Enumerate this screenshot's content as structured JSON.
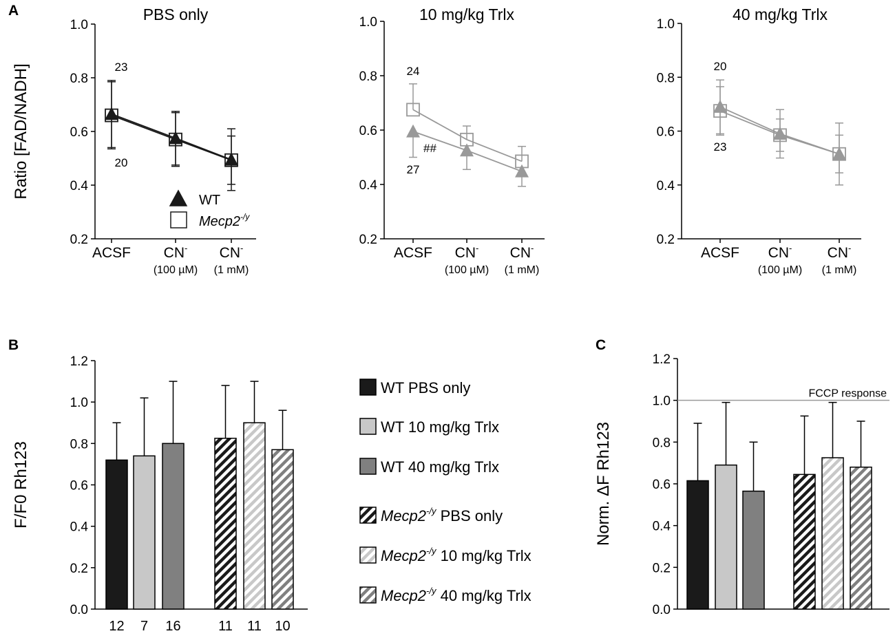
{
  "panel_labels": {
    "a": "A",
    "b": "B",
    "c": "C"
  },
  "legend_a": {
    "wt": "WT",
    "mecp2": "Mecp2",
    "mecp2_sup": "-/y"
  },
  "legend_b": {
    "entries": [
      {
        "label": "WT PBS only",
        "italic_prefix": "",
        "sup": "",
        "style": "solid",
        "color": "#1a1a1a"
      },
      {
        "label": "WT 10 mg/kg Trlx",
        "italic_prefix": "",
        "sup": "",
        "style": "solid",
        "color": "#c8c8c8"
      },
      {
        "label": "WT 40 mg/kg Trlx",
        "italic_prefix": "",
        "sup": "",
        "style": "solid",
        "color": "#808080"
      },
      {
        "label": " PBS only",
        "italic_prefix": "Mecp2",
        "sup": "-/y",
        "style": "hatch",
        "color": "#1a1a1a"
      },
      {
        "label": " 10 mg/kg Trlx",
        "italic_prefix": "Mecp2",
        "sup": "-/y",
        "style": "hatch",
        "color": "#c8c8c8"
      },
      {
        "label": " 40 mg/kg Trlx",
        "italic_prefix": "Mecp2",
        "sup": "-/y",
        "style": "hatch",
        "color": "#808080"
      }
    ]
  },
  "chart_data": [
    {
      "type": "line",
      "panel": "A",
      "title": "PBS only",
      "ylabel": "Ratio [FAD/NADH]",
      "ylim": [
        0.2,
        1.0
      ],
      "yticks": [
        "1.0",
        "0.8",
        "0.6",
        "0.4",
        "0.2"
      ],
      "categories": [
        {
          "main": "ACSF",
          "main_sup": "",
          "sub": ""
        },
        {
          "main": "CN",
          "main_sup": "-",
          "sub": "(100 µM)"
        },
        {
          "main": "CN",
          "main_sup": "-",
          "sub": "(1 mM)"
        }
      ],
      "series": [
        {
          "name": "WT",
          "marker": "triangle",
          "color": "#1a1a1a",
          "values": [
            0.665,
            0.575,
            0.495
          ],
          "err": [
            0.125,
            0.1,
            0.115
          ]
        },
        {
          "name": "Mecp2-/y",
          "marker": "square",
          "color": "#1a1a1a",
          "values": [
            0.66,
            0.57,
            0.493
          ],
          "err": [
            0.125,
            0.1,
            0.09
          ]
        }
      ],
      "annotations": [
        {
          "text": "23"
        },
        {
          "text": "20"
        }
      ]
    },
    {
      "type": "line",
      "panel": "A",
      "title": "10 mg/kg Trlx",
      "ylim": [
        0.2,
        1.0
      ],
      "yticks": [
        "1.0",
        "0.8",
        "0.6",
        "0.4",
        "0.2"
      ],
      "categories": [
        {
          "main": "ACSF",
          "main_sup": "",
          "sub": ""
        },
        {
          "main": "CN",
          "main_sup": "-",
          "sub": "(100 µM)"
        },
        {
          "main": "CN",
          "main_sup": "-",
          "sub": "(1 mM)"
        }
      ],
      "series": [
        {
          "name": "WT",
          "marker": "triangle",
          "color": "#999999",
          "values": [
            0.595,
            0.525,
            0.448
          ],
          "err": [
            0.095,
            0.07,
            0.055
          ]
        },
        {
          "name": "Mecp2-/y",
          "marker": "square",
          "color": "#999999",
          "values": [
            0.675,
            0.565,
            0.485
          ],
          "err": [
            0.095,
            0.05,
            0.055
          ]
        }
      ],
      "annotations": [
        {
          "text": "24"
        },
        {
          "text": "27"
        },
        {
          "text": "##"
        }
      ]
    },
    {
      "type": "line",
      "panel": "A",
      "title": "40 mg/kg Trlx",
      "ylim": [
        0.2,
        1.0
      ],
      "yticks": [
        "1.0",
        "0.8",
        "0.6",
        "0.4",
        "0.2"
      ],
      "categories": [
        {
          "main": "ACSF",
          "main_sup": "",
          "sub": ""
        },
        {
          "main": "CN",
          "main_sup": "-",
          "sub": "(100 µM)"
        },
        {
          "main": "CN",
          "main_sup": "-",
          "sub": "(1 mM)"
        }
      ],
      "series": [
        {
          "name": "WT",
          "marker": "triangle",
          "color": "#999999",
          "values": [
            0.69,
            0.59,
            0.515
          ],
          "err": [
            0.1,
            0.09,
            0.07
          ]
        },
        {
          "name": "Mecp2-/y",
          "marker": "square",
          "color": "#999999",
          "values": [
            0.675,
            0.585,
            0.515
          ],
          "err": [
            0.09,
            0.06,
            0.115
          ]
        }
      ],
      "annotations": [
        {
          "text": "20"
        },
        {
          "text": "23"
        }
      ]
    },
    {
      "type": "bar",
      "panel": "B",
      "ylabel": "F/F0 Rh123",
      "ylim": [
        0.0,
        1.2
      ],
      "yticks": [
        "1.2",
        "1.0",
        "0.8",
        "0.6",
        "0.4",
        "0.2",
        "0.0"
      ],
      "bars": [
        {
          "group": "WT PBS only",
          "value": 0.72,
          "err": 0.18,
          "n": "12"
        },
        {
          "group": "WT 10 mg/kg Trlx",
          "value": 0.74,
          "err": 0.28,
          "n": "7"
        },
        {
          "group": "WT 40 mg/kg Trlx",
          "value": 0.8,
          "err": 0.3,
          "n": "16"
        },
        {
          "group": "Mecp2-/y PBS only",
          "value": 0.825,
          "err": 0.255,
          "n": "11"
        },
        {
          "group": "Mecp2-/y 10 mg/kg Trlx",
          "value": 0.9,
          "err": 0.2,
          "n": "11"
        },
        {
          "group": "Mecp2-/y 40 mg/kg Trlx",
          "value": 0.77,
          "err": 0.19,
          "n": "10"
        }
      ]
    },
    {
      "type": "bar",
      "panel": "C",
      "ylabel": "Norm. ΔF Rh123",
      "ylim": [
        0.0,
        1.2
      ],
      "yticks": [
        "1.2",
        "1.0",
        "0.8",
        "0.6",
        "0.4",
        "0.2",
        "0.0"
      ],
      "reference_line": {
        "value": 1.0,
        "label": "FCCP response"
      },
      "bars": [
        {
          "group": "WT PBS only",
          "value": 0.615,
          "err": 0.275
        },
        {
          "group": "WT 10 mg/kg Trlx",
          "value": 0.69,
          "err": 0.3
        },
        {
          "group": "WT 40 mg/kg Trlx",
          "value": 0.565,
          "err": 0.235
        },
        {
          "group": "Mecp2-/y PBS only",
          "value": 0.645,
          "err": 0.28
        },
        {
          "group": "Mecp2-/y 10 mg/kg Trlx",
          "value": 0.725,
          "err": 0.265
        },
        {
          "group": "Mecp2-/y 40 mg/kg Trlx",
          "value": 0.68,
          "err": 0.22
        }
      ]
    }
  ]
}
